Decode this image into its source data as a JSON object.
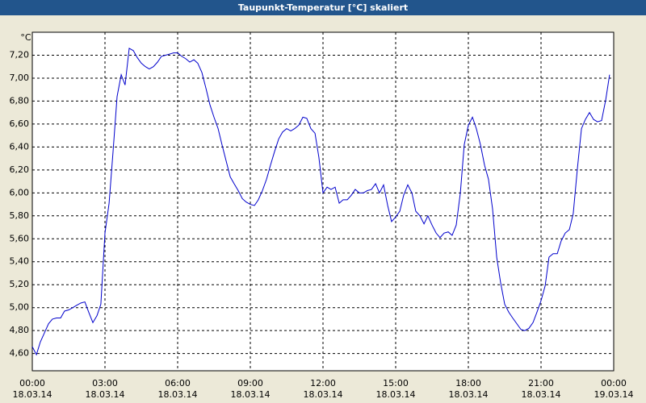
{
  "chart_data": {
    "type": "line",
    "title": "Taupunkt-Temperatur [°C] skaliert",
    "y_label": "°C",
    "color": "#0000cc",
    "grid": true,
    "xlim": [
      0,
      24
    ],
    "ylim": [
      4.45,
      7.4
    ],
    "xticks": [
      {
        "value": 0,
        "label": "00:00\n18.03.14"
      },
      {
        "value": 3,
        "label": "03:00\n18.03.14"
      },
      {
        "value": 6,
        "label": "06:00\n18.03.14"
      },
      {
        "value": 9,
        "label": "09:00\n18.03.14"
      },
      {
        "value": 12,
        "label": "12:00\n18.03.14"
      },
      {
        "value": 15,
        "label": "15:00\n18.03.14"
      },
      {
        "value": 18,
        "label": "18:00\n18.03.14"
      },
      {
        "value": 21,
        "label": "21:00\n18.03.14"
      },
      {
        "value": 24,
        "label": "00:00\n19.03.14"
      }
    ],
    "yticks": [
      {
        "value": 4.6,
        "label": "4,60"
      },
      {
        "value": 4.8,
        "label": "4,80"
      },
      {
        "value": 5.0,
        "label": "5,00"
      },
      {
        "value": 5.2,
        "label": "5,20"
      },
      {
        "value": 5.4,
        "label": "5,40"
      },
      {
        "value": 5.6,
        "label": "5,60"
      },
      {
        "value": 5.8,
        "label": "5,80"
      },
      {
        "value": 6.0,
        "label": "6,00"
      },
      {
        "value": 6.2,
        "label": "6,20"
      },
      {
        "value": 6.4,
        "label": "6,40"
      },
      {
        "value": 6.6,
        "label": "6,60"
      },
      {
        "value": 6.8,
        "label": "6,80"
      },
      {
        "value": 7.0,
        "label": "7,00"
      },
      {
        "value": 7.2,
        "label": "7,20"
      }
    ],
    "x": [
      0,
      0.17,
      0.33,
      0.5,
      0.67,
      0.83,
      1,
      1.17,
      1.33,
      1.5,
      1.67,
      1.83,
      2,
      2.17,
      2.33,
      2.5,
      2.67,
      2.83,
      3,
      3.17,
      3.33,
      3.5,
      3.67,
      3.83,
      4,
      4.17,
      4.33,
      4.5,
      4.67,
      4.83,
      5,
      5.17,
      5.33,
      5.5,
      5.67,
      5.83,
      6,
      6.17,
      6.33,
      6.5,
      6.67,
      6.83,
      7,
      7.17,
      7.33,
      7.5,
      7.67,
      7.83,
      8,
      8.17,
      8.33,
      8.5,
      8.67,
      8.83,
      9,
      9.17,
      9.33,
      9.5,
      9.67,
      9.83,
      10,
      10.17,
      10.33,
      10.5,
      10.67,
      10.83,
      11,
      11.17,
      11.33,
      11.5,
      11.67,
      11.83,
      12,
      12.17,
      12.33,
      12.5,
      12.67,
      12.83,
      13,
      13.17,
      13.33,
      13.5,
      13.67,
      13.83,
      14,
      14.17,
      14.33,
      14.5,
      14.67,
      14.83,
      15,
      15.17,
      15.33,
      15.5,
      15.67,
      15.83,
      16,
      16.17,
      16.33,
      16.5,
      16.67,
      16.83,
      17,
      17.17,
      17.33,
      17.5,
      17.67,
      17.83,
      18,
      18.17,
      18.33,
      18.5,
      18.67,
      18.83,
      19,
      19.17,
      19.33,
      19.5,
      19.67,
      19.83,
      20,
      20.17,
      20.33,
      20.5,
      20.67,
      20.83,
      21,
      21.17,
      21.33,
      21.5,
      21.67,
      21.83,
      22,
      22.17,
      22.33,
      22.5,
      22.67,
      22.83,
      23,
      23.17,
      23.33,
      23.5,
      23.67,
      23.83
    ],
    "values": [
      4.66,
      4.59,
      4.7,
      4.78,
      4.86,
      4.9,
      4.91,
      4.91,
      4.97,
      4.98,
      5.0,
      5.02,
      5.04,
      5.05,
      4.96,
      4.87,
      4.93,
      5.03,
      5.65,
      5.91,
      6.35,
      6.84,
      7.03,
      6.94,
      7.26,
      7.24,
      7.18,
      7.13,
      7.1,
      7.08,
      7.1,
      7.14,
      7.19,
      7.2,
      7.21,
      7.22,
      7.22,
      7.19,
      7.17,
      7.14,
      7.16,
      7.13,
      7.05,
      6.91,
      6.77,
      6.66,
      6.56,
      6.42,
      6.28,
      6.14,
      6.08,
      6.02,
      5.95,
      5.92,
      5.9,
      5.89,
      5.94,
      6.02,
      6.12,
      6.24,
      6.36,
      6.47,
      6.53,
      6.56,
      6.54,
      6.56,
      6.59,
      6.66,
      6.65,
      6.56,
      6.52,
      6.31,
      6.0,
      6.05,
      6.03,
      6.05,
      5.91,
      5.94,
      5.94,
      5.98,
      6.03,
      6.0,
      6.0,
      6.02,
      6.03,
      6.08,
      6.0,
      6.07,
      5.89,
      5.75,
      5.79,
      5.84,
      5.98,
      6.07,
      6.0,
      5.84,
      5.8,
      5.73,
      5.8,
      5.72,
      5.65,
      5.61,
      5.65,
      5.66,
      5.63,
      5.72,
      6.0,
      6.42,
      6.59,
      6.66,
      6.56,
      6.42,
      6.24,
      6.12,
      5.86,
      5.44,
      5.22,
      5.03,
      4.96,
      4.91,
      4.86,
      4.81,
      4.8,
      4.82,
      4.87,
      4.96,
      5.06,
      5.19,
      5.44,
      5.47,
      5.47,
      5.58,
      5.65,
      5.68,
      5.82,
      6.21,
      6.56,
      6.64,
      6.7,
      6.64,
      6.62,
      6.63,
      6.81,
      7.03
    ]
  }
}
